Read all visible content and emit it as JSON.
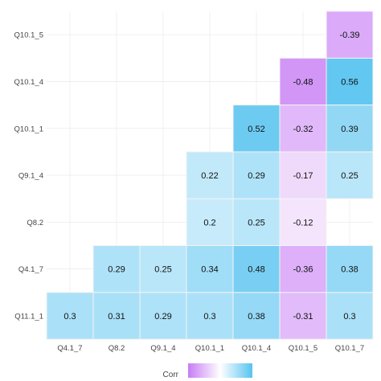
{
  "chart_data": {
    "type": "heatmap",
    "title": "",
    "xlabel": "",
    "ylabel": "",
    "x_categories": [
      "Q4.1_7",
      "Q8.2",
      "Q9.1_4",
      "Q10.1_1",
      "Q10.1_4",
      "Q10.1_5",
      "Q10.1_7"
    ],
    "y_categories_bottom_to_top": [
      "Q11.1_1",
      "Q4.1_7",
      "Q8.2",
      "Q9.1_4",
      "Q10.1_1",
      "Q10.1_4",
      "Q10.1_5"
    ],
    "values_by_row_bottom_to_top": [
      [
        0.3,
        0.31,
        0.29,
        0.3,
        0.38,
        -0.31,
        0.3
      ],
      [
        null,
        0.29,
        0.25,
        0.34,
        0.48,
        -0.36,
        0.38
      ],
      [
        null,
        null,
        null,
        0.2,
        0.25,
        -0.12,
        null
      ],
      [
        null,
        null,
        null,
        0.22,
        0.29,
        -0.17,
        0.25
      ],
      [
        null,
        null,
        null,
        null,
        0.52,
        -0.32,
        0.39
      ],
      [
        null,
        null,
        null,
        null,
        null,
        -0.48,
        0.56
      ],
      [
        null,
        null,
        null,
        null,
        null,
        null,
        -0.39
      ]
    ],
    "value_labels_by_row_bottom_to_top": [
      [
        "0.3",
        "0.31",
        "0.29",
        "0.3",
        "0.38",
        "-0.31",
        "0.3"
      ],
      [
        null,
        "0.29",
        "0.25",
        "0.34",
        "0.48",
        "-0.36",
        "0.38"
      ],
      [
        null,
        null,
        null,
        "0.2",
        "0.25",
        "-0.12",
        null
      ],
      [
        null,
        null,
        null,
        "0.22",
        "0.29",
        "-0.17",
        "0.25"
      ],
      [
        null,
        null,
        null,
        null,
        "0.52",
        "-0.32",
        "0.39"
      ],
      [
        null,
        null,
        null,
        null,
        null,
        "-0.48",
        "0.56"
      ],
      [
        null,
        null,
        null,
        null,
        null,
        null,
        "-0.39"
      ]
    ],
    "color_scale": {
      "negative": "#c77cf5",
      "zero": "#ffffff",
      "positive": "#57c3f0",
      "limits": [
        -0.6,
        0.6
      ]
    },
    "legend": {
      "title": "Corr",
      "placement": "bottom"
    },
    "grid": true
  }
}
